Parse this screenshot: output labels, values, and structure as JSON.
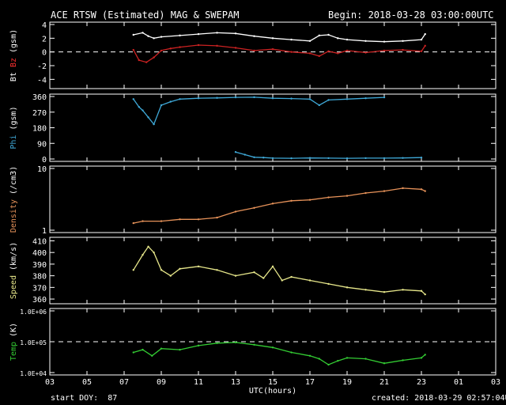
{
  "header": {
    "title": "ACE RTSW (Estimated) MAG & SWEPAM",
    "begin": "Begin: 2018-03-28 03:00:00UTC"
  },
  "footer": {
    "start_doy": "start DOY:  87",
    "created": "created: 2018-03-29 02:57:04UTC"
  },
  "chart_data": {
    "type": "line",
    "xlabel": "UTC(hours)",
    "x_range": [
      3,
      27
    ],
    "x_ticks": [
      "03",
      "05",
      "07",
      "09",
      "11",
      "13",
      "15",
      "17",
      "19",
      "21",
      "23",
      "01",
      "03"
    ],
    "panels": [
      {
        "id": "mag",
        "ylabel_parts": [
          {
            "text": "Bt",
            "color": "#ffffff"
          },
          {
            "text": " Bz",
            "color": "#ff3030"
          },
          {
            "text": " (gsm)",
            "color": "#ffffff"
          }
        ],
        "ylim": [
          -5,
          4
        ],
        "y_ticks": [
          "4",
          "2",
          "0",
          "-2",
          "-4"
        ],
        "y_tick_values": [
          4,
          2,
          0,
          -2,
          -4
        ],
        "dashed_at": 0,
        "series": [
          {
            "name": "Bt",
            "color": "#ffffff",
            "x": [
              7.5,
              8,
              8.3,
              8.6,
              9,
              10,
              11,
              12,
              13,
              14,
              15,
              16,
              17,
              17.5,
              18,
              18.5,
              19,
              20,
              21,
              22,
              23,
              23.2
            ],
            "y": [
              2.5,
              2.8,
              2.3,
              2.0,
              2.2,
              2.4,
              2.6,
              2.8,
              2.7,
              2.3,
              2.0,
              1.8,
              1.6,
              2.4,
              2.5,
              2.0,
              1.8,
              1.6,
              1.5,
              1.6,
              1.8,
              2.6
            ]
          },
          {
            "name": "Bz",
            "color": "#cc2222",
            "x": [
              7.5,
              7.8,
              8.2,
              8.6,
              9,
              9.5,
              10,
              11,
              12,
              13,
              14,
              15,
              16,
              17,
              17.5,
              18,
              18.5,
              19,
              20,
              21,
              22,
              23,
              23.2
            ],
            "y": [
              0.3,
              -1.2,
              -1.5,
              -0.8,
              0.2,
              0.5,
              0.7,
              1.0,
              0.9,
              0.6,
              0.2,
              0.4,
              0.0,
              -0.2,
              -0.6,
              0.1,
              -0.2,
              0.2,
              -0.1,
              0.2,
              0.3,
              0.1,
              0.9
            ]
          }
        ]
      },
      {
        "id": "phi",
        "ylabel_parts": [
          {
            "text": "Phi",
            "color": "#3fa9d8"
          },
          {
            "text": " (gsm)",
            "color": "#ffffff"
          }
        ],
        "ylim": [
          0,
          360
        ],
        "y_ticks": [
          "360",
          "270",
          "180",
          "90",
          "0"
        ],
        "y_tick_values": [
          360,
          270,
          180,
          90,
          0
        ],
        "series": [
          {
            "name": "Phi",
            "color": "#3fa9d8",
            "x": [
              7.5,
              7.8,
              8,
              8.3,
              8.6,
              9,
              9.5,
              10,
              11,
              12,
              13,
              14,
              15,
              16,
              17,
              17.5,
              18,
              19,
              20,
              21
            ],
            "y": [
              345,
              300,
              280,
              240,
              200,
              310,
              330,
              345,
              350,
              352,
              355,
              356,
              350,
              348,
              345,
              310,
              340,
              345,
              350,
              355
            ]
          },
          {
            "name": "Phi",
            "color": "#3fa9d8",
            "x": [
              13,
              13.5,
              14,
              14.5,
              15,
              16,
              17,
              18,
              19,
              20,
              21,
              22,
              23
            ],
            "y": [
              40,
              25,
              10,
              8,
              5,
              4,
              6,
              5,
              4,
              5,
              5,
              6,
              8
            ]
          }
        ]
      },
      {
        "id": "density",
        "ylabel_parts": [
          {
            "text": "Density",
            "color": "#e8935a"
          },
          {
            "text": " (/cm3)",
            "color": "#ffffff"
          }
        ],
        "log": true,
        "ylim": [
          1,
          10
        ],
        "y_ticks": [
          "10",
          "1"
        ],
        "y_tick_values": [
          10,
          1
        ],
        "series": [
          {
            "name": "Density",
            "color": "#e8935a",
            "x": [
              7.5,
              8,
              9,
              10,
              11,
              12,
              13,
              14,
              15,
              16,
              17,
              18,
              19,
              20,
              21,
              22,
              23,
              23.2
            ],
            "y": [
              1.3,
              1.4,
              1.4,
              1.5,
              1.5,
              1.6,
              2.0,
              2.3,
              2.7,
              3.0,
              3.1,
              3.4,
              3.6,
              4.0,
              4.3,
              4.8,
              4.6,
              4.3
            ]
          }
        ]
      },
      {
        "id": "speed",
        "ylabel_parts": [
          {
            "text": "Speed",
            "color": "#e6e68a"
          },
          {
            "text": " (km/s)",
            "color": "#ffffff"
          }
        ],
        "ylim": [
          358,
          411
        ],
        "y_ticks": [
          "410",
          "400",
          "390",
          "380",
          "370",
          "360"
        ],
        "y_tick_values": [
          410,
          400,
          390,
          380,
          370,
          360
        ],
        "series": [
          {
            "name": "Speed",
            "color": "#e6e68a",
            "x": [
              7.5,
              8,
              8.3,
              8.6,
              9,
              9.5,
              10,
              11,
              12,
              13,
              14,
              14.5,
              15,
              15.5,
              16,
              17,
              18,
              19,
              20,
              21,
              22,
              23,
              23.2
            ],
            "y": [
              385,
              398,
              405,
              400,
              385,
              380,
              386,
              388,
              385,
              380,
              383,
              378,
              388,
              376,
              379,
              376,
              373,
              370,
              368,
              366,
              368,
              367,
              364
            ]
          }
        ]
      },
      {
        "id": "temp",
        "ylabel_parts": [
          {
            "text": "Temp",
            "color": "#33cc33"
          },
          {
            "text": " (K)",
            "color": "#ffffff"
          }
        ],
        "log": true,
        "ylim": [
          10000,
          1000000
        ],
        "y_ticks": [
          "1.0E+06",
          "1.0E+05",
          "1.0E+04"
        ],
        "y_tick_values": [
          1000000,
          100000,
          10000
        ],
        "dashed_at": 100000,
        "series": [
          {
            "name": "Temp",
            "color": "#33cc33",
            "x": [
              7.5,
              8,
              8.5,
              9,
              10,
              11,
              12,
              13,
              14,
              15,
              16,
              17,
              17.5,
              18,
              18.5,
              19,
              20,
              21,
              22,
              23,
              23.2
            ],
            "y": [
              45000,
              55000,
              35000,
              60000,
              55000,
              75000,
              90000,
              95000,
              80000,
              65000,
              45000,
              35000,
              28000,
              18000,
              24000,
              30000,
              28000,
              20000,
              25000,
              30000,
              38000
            ]
          }
        ]
      }
    ]
  }
}
